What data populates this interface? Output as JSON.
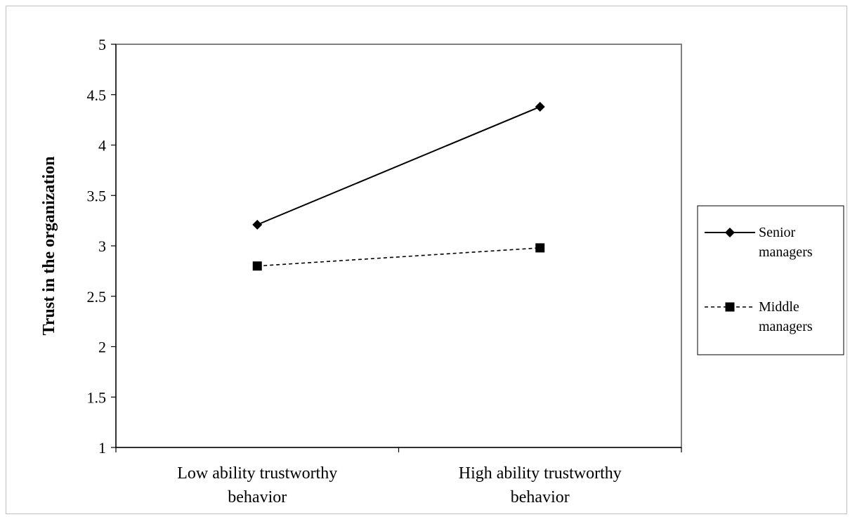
{
  "chart_data": {
    "type": "line",
    "title": "",
    "xlabel": "",
    "ylabel": "Trust in the organization",
    "categories": [
      [
        "Low ability trustworthy",
        "behavior"
      ],
      [
        "High ability trustworthy",
        "behavior"
      ]
    ],
    "ylim": [
      1,
      5
    ],
    "yticks": [
      "1",
      "1.5",
      "2",
      "2.5",
      "3",
      "3.5",
      "4",
      "4.5",
      "5"
    ],
    "grid": false,
    "legend_position": "right",
    "series": [
      {
        "name": [
          "Senior",
          "managers"
        ],
        "values": [
          3.21,
          4.38
        ],
        "marker": "diamond",
        "line_style": "solid",
        "color": "#000000"
      },
      {
        "name": [
          "Middle",
          "managers"
        ],
        "values": [
          2.8,
          2.98
        ],
        "marker": "square",
        "line_style": "dashed",
        "color": "#000000"
      }
    ]
  }
}
